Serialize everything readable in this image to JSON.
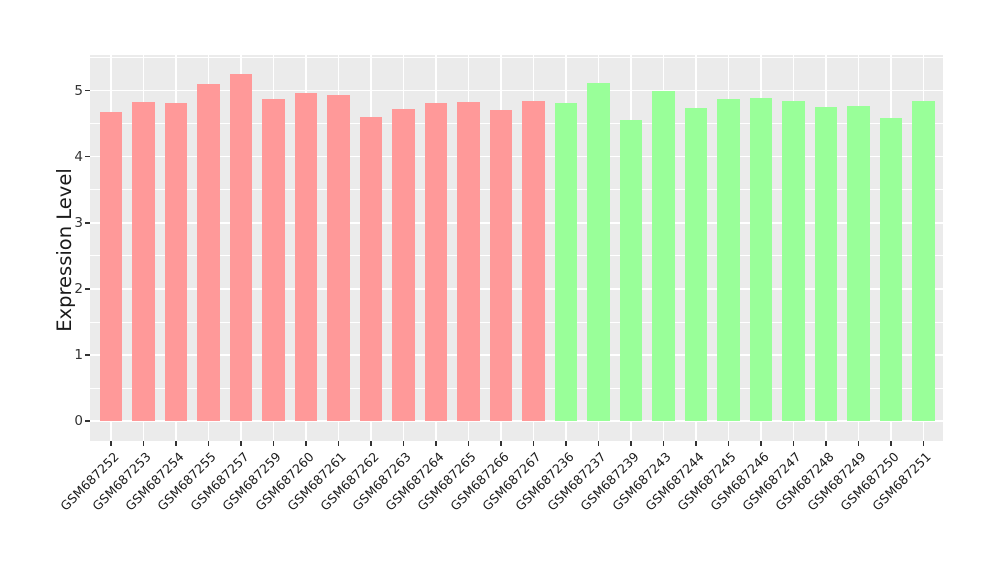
{
  "chart_data": {
    "type": "bar",
    "title": "",
    "xlabel": "",
    "ylabel": "Expression Level",
    "categories": [
      "GSM687252",
      "GSM687253",
      "GSM687254",
      "GSM687255",
      "GSM687257",
      "GSM687259",
      "GSM687260",
      "GSM687261",
      "GSM687262",
      "GSM687263",
      "GSM687264",
      "GSM687265",
      "GSM687266",
      "GSM687267",
      "GSM687236",
      "GSM687237",
      "GSM687239",
      "GSM687243",
      "GSM687244",
      "GSM687245",
      "GSM687246",
      "GSM687247",
      "GSM687248",
      "GSM687249",
      "GSM687250",
      "GSM687251"
    ],
    "values": [
      4.67,
      4.83,
      4.82,
      5.1,
      5.25,
      4.87,
      4.97,
      4.94,
      4.6,
      4.72,
      4.81,
      4.83,
      4.71,
      4.84,
      4.82,
      5.11,
      4.55,
      5.0,
      4.74,
      4.87,
      4.89,
      4.85,
      4.75,
      4.77,
      4.58,
      4.85
    ],
    "bar_colors": [
      "#FF9999",
      "#FF9999",
      "#FF9999",
      "#FF9999",
      "#FF9999",
      "#FF9999",
      "#FF9999",
      "#FF9999",
      "#FF9999",
      "#FF9999",
      "#FF9999",
      "#FF9999",
      "#FF9999",
      "#FF9999",
      "#99FF99",
      "#99FF99",
      "#99FF99",
      "#99FF99",
      "#99FF99",
      "#99FF99",
      "#99FF99",
      "#99FF99",
      "#99FF99",
      "#99FF99",
      "#99FF99",
      "#99FF99"
    ],
    "palette": {
      "group1_color": "#FF9999",
      "group2_color": "#99FF99",
      "group1_count": 14,
      "group2_count": 12
    },
    "y_ticks": [
      "0",
      "1",
      "2",
      "3",
      "4",
      "5"
    ],
    "ylim": [
      -0.3,
      5.54
    ],
    "grid": "horizontal major+minor white, vertical major white at each category",
    "legend": "none",
    "panel_background": "#EBEBEB",
    "grid_color": "#FFFFFF",
    "figure_background": "#FFFFFF"
  }
}
